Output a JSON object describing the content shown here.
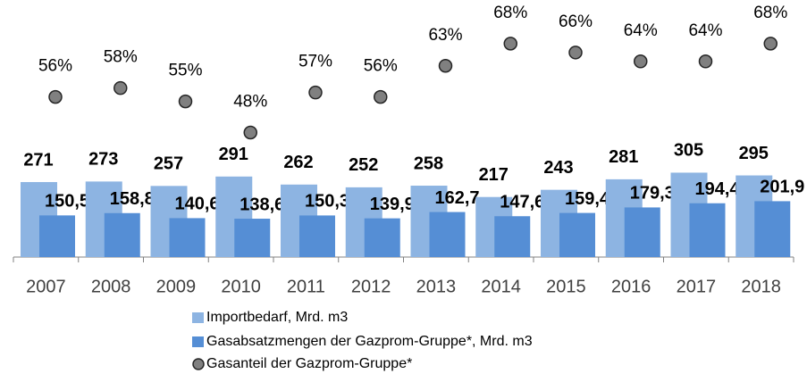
{
  "chart_data": {
    "type": "bar",
    "categories": [
      "2007",
      "2008",
      "2009",
      "2010",
      "2011",
      "2012",
      "2013",
      "2014",
      "2015",
      "2016",
      "2017",
      "2018"
    ],
    "ylim": [
      0,
      900
    ],
    "y2lim": [
      20,
      76
    ],
    "series": [
      {
        "name": "Importbedarf, Mrd. m3",
        "color": "#8db4e2",
        "values": [
          271,
          273,
          257,
          291,
          262,
          252,
          258,
          217,
          243,
          281,
          305,
          295
        ]
      },
      {
        "name": "Gasabsatzmengen der Gazprom-Gruppe*, Mrd. m3",
        "color": "#558ed5",
        "values": [
          150.5,
          158.8,
          140.6,
          138.6,
          150.3,
          139.9,
          162.7,
          147.6,
          159.4,
          179.3,
          194.4,
          201.9
        ],
        "value_labels": [
          "150,5",
          "158,8",
          "140,6",
          "138,6",
          "150,3",
          "139,9",
          "162,7",
          "147,6",
          "159,4",
          "179,3",
          "194,4",
          "201,9"
        ]
      },
      {
        "name": "Gasanteil der Gazprom-Gruppe*",
        "color": "#808080",
        "axis": "y2",
        "values": [
          56,
          58,
          55,
          48,
          57,
          56,
          63,
          68,
          66,
          64,
          64,
          68
        ],
        "value_labels": [
          "56%",
          "58%",
          "55%",
          "48%",
          "57%",
          "56%",
          "63%",
          "68%",
          "66%",
          "64%",
          "64%",
          "68%"
        ]
      }
    ]
  }
}
